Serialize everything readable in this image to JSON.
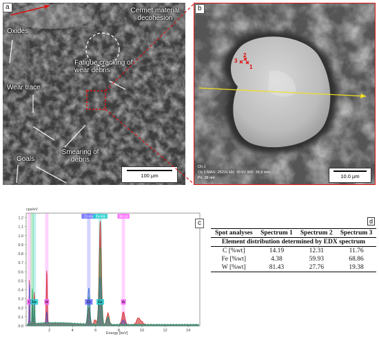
{
  "panel_a": {
    "letter": "a",
    "labels": {
      "cermet": "Cermet material decohesion",
      "oxides": "Oxides",
      "fatigue": "Fatigue cracking of wear debris",
      "wear_trace": "Wear trace",
      "smearing": "Smearing of debris",
      "goals": "Goals"
    },
    "scale": "100 μm"
  },
  "panel_b": {
    "letter": "b",
    "spots": [
      "1",
      "2",
      "3"
    ],
    "info_line1": "Ch 1",
    "info_line2": "Ch 1    MAG: 2522x    HV: 30 kV    WD: 38.9 mm",
    "info_line3": "Px: 38 nm",
    "scale": "10.0 μm"
  },
  "panel_c": {
    "letter": "c",
    "unit": "cps/eV",
    "xlabel": "Energy [keV]"
  },
  "chart_data": {
    "type": "line",
    "title": "",
    "xlabel": "Energy [keV]",
    "ylabel": "cps/eV",
    "xlim": [
      0,
      15
    ],
    "ylim": [
      0,
      1.25
    ],
    "xticks": [
      "2",
      "4",
      "6",
      "8",
      "10",
      "12",
      "14"
    ],
    "yticks": [
      "0.0",
      "0.1",
      "0.2",
      "0.3",
      "0.4",
      "0.5",
      "0.6",
      "0.7",
      "0.8",
      "0.9",
      "1.0",
      "1.1",
      "1.2"
    ],
    "peak_labels": [
      {
        "text": "C",
        "x": 0.28,
        "color": "#ff66ff"
      },
      {
        "text": "Fe",
        "x": 0.7,
        "color": "#22cccc"
      },
      {
        "text": "W",
        "x": 1.78,
        "color": "#ff66ff"
      },
      {
        "text": "Cr",
        "x": 5.41,
        "color": "#6666ff"
      },
      {
        "text": "Fe",
        "x": 6.4,
        "color": "#22cccc"
      },
      {
        "text": "W",
        "x": 8.4,
        "color": "#ff66ff"
      }
    ],
    "top_labels": [
      {
        "text": "Cr-Kα",
        "x": 5.41,
        "color": "#6666ff"
      },
      {
        "text": "Fe-Kα",
        "x": 6.4,
        "color": "#22cccc"
      },
      {
        "text": "W-Lα",
        "x": 8.4,
        "color": "#ff66ff"
      }
    ],
    "bands": [
      {
        "x": 0.28,
        "color": "#ff66ff"
      },
      {
        "x": 0.53,
        "color": "#33cc33"
      },
      {
        "x": 0.7,
        "color": "#22cccc"
      },
      {
        "x": 1.78,
        "color": "#ff66ff"
      },
      {
        "x": 5.41,
        "color": "#6666ff"
      },
      {
        "x": 6.4,
        "color": "#22cccc"
      },
      {
        "x": 8.4,
        "color": "#ff66ff"
      }
    ],
    "series": [
      {
        "color": "#cc1111",
        "peaks": [
          {
            "x": 0.28,
            "h": 0.48
          },
          {
            "x": 0.53,
            "h": 0.3
          },
          {
            "x": 0.7,
            "h": 0.35
          },
          {
            "x": 1.78,
            "h": 0.58
          },
          {
            "x": 5.41,
            "h": 0.18
          },
          {
            "x": 5.95,
            "h": 0.05
          },
          {
            "x": 6.4,
            "h": 1.14
          },
          {
            "x": 7.06,
            "h": 0.13
          },
          {
            "x": 8.4,
            "h": 0.14
          },
          {
            "x": 9.67,
            "h": 0.07
          },
          {
            "x": 9.96,
            "h": 0.03
          }
        ]
      },
      {
        "color": "#2255cc",
        "peaks": [
          {
            "x": 0.28,
            "h": 0.45
          },
          {
            "x": 0.53,
            "h": 0.2
          },
          {
            "x": 0.7,
            "h": 0.25
          },
          {
            "x": 1.78,
            "h": 0.12
          },
          {
            "x": 5.41,
            "h": 0.4
          },
          {
            "x": 6.4,
            "h": 0.52
          },
          {
            "x": 7.06,
            "h": 0.07
          },
          {
            "x": 8.4,
            "h": 0.05
          }
        ]
      },
      {
        "color": "#22aa55",
        "peaks": [
          {
            "x": 0.53,
            "h": 0.4
          },
          {
            "x": 0.7,
            "h": 0.2
          },
          {
            "x": 5.41,
            "h": 0.3
          },
          {
            "x": 6.4,
            "h": 0.85
          },
          {
            "x": 7.06,
            "h": 0.09
          }
        ]
      }
    ]
  },
  "panel_d": {
    "letter": "d",
    "headers": [
      "Spot analyses",
      "Spectrum 1",
      "Spectrum 2",
      "Spectrum 3"
    ],
    "subtitle": "Element distribution determined by EDX spectrum",
    "rows": [
      {
        "element": "C [%wt]",
        "values": [
          "14.19",
          "12.31",
          "11.76"
        ]
      },
      {
        "element": "Fe [%wt]",
        "values": [
          "4.38",
          "59.93",
          "68.86"
        ]
      },
      {
        "element": "W [%wt]",
        "values": [
          "81.43",
          "27.76",
          "19.38"
        ]
      }
    ]
  }
}
